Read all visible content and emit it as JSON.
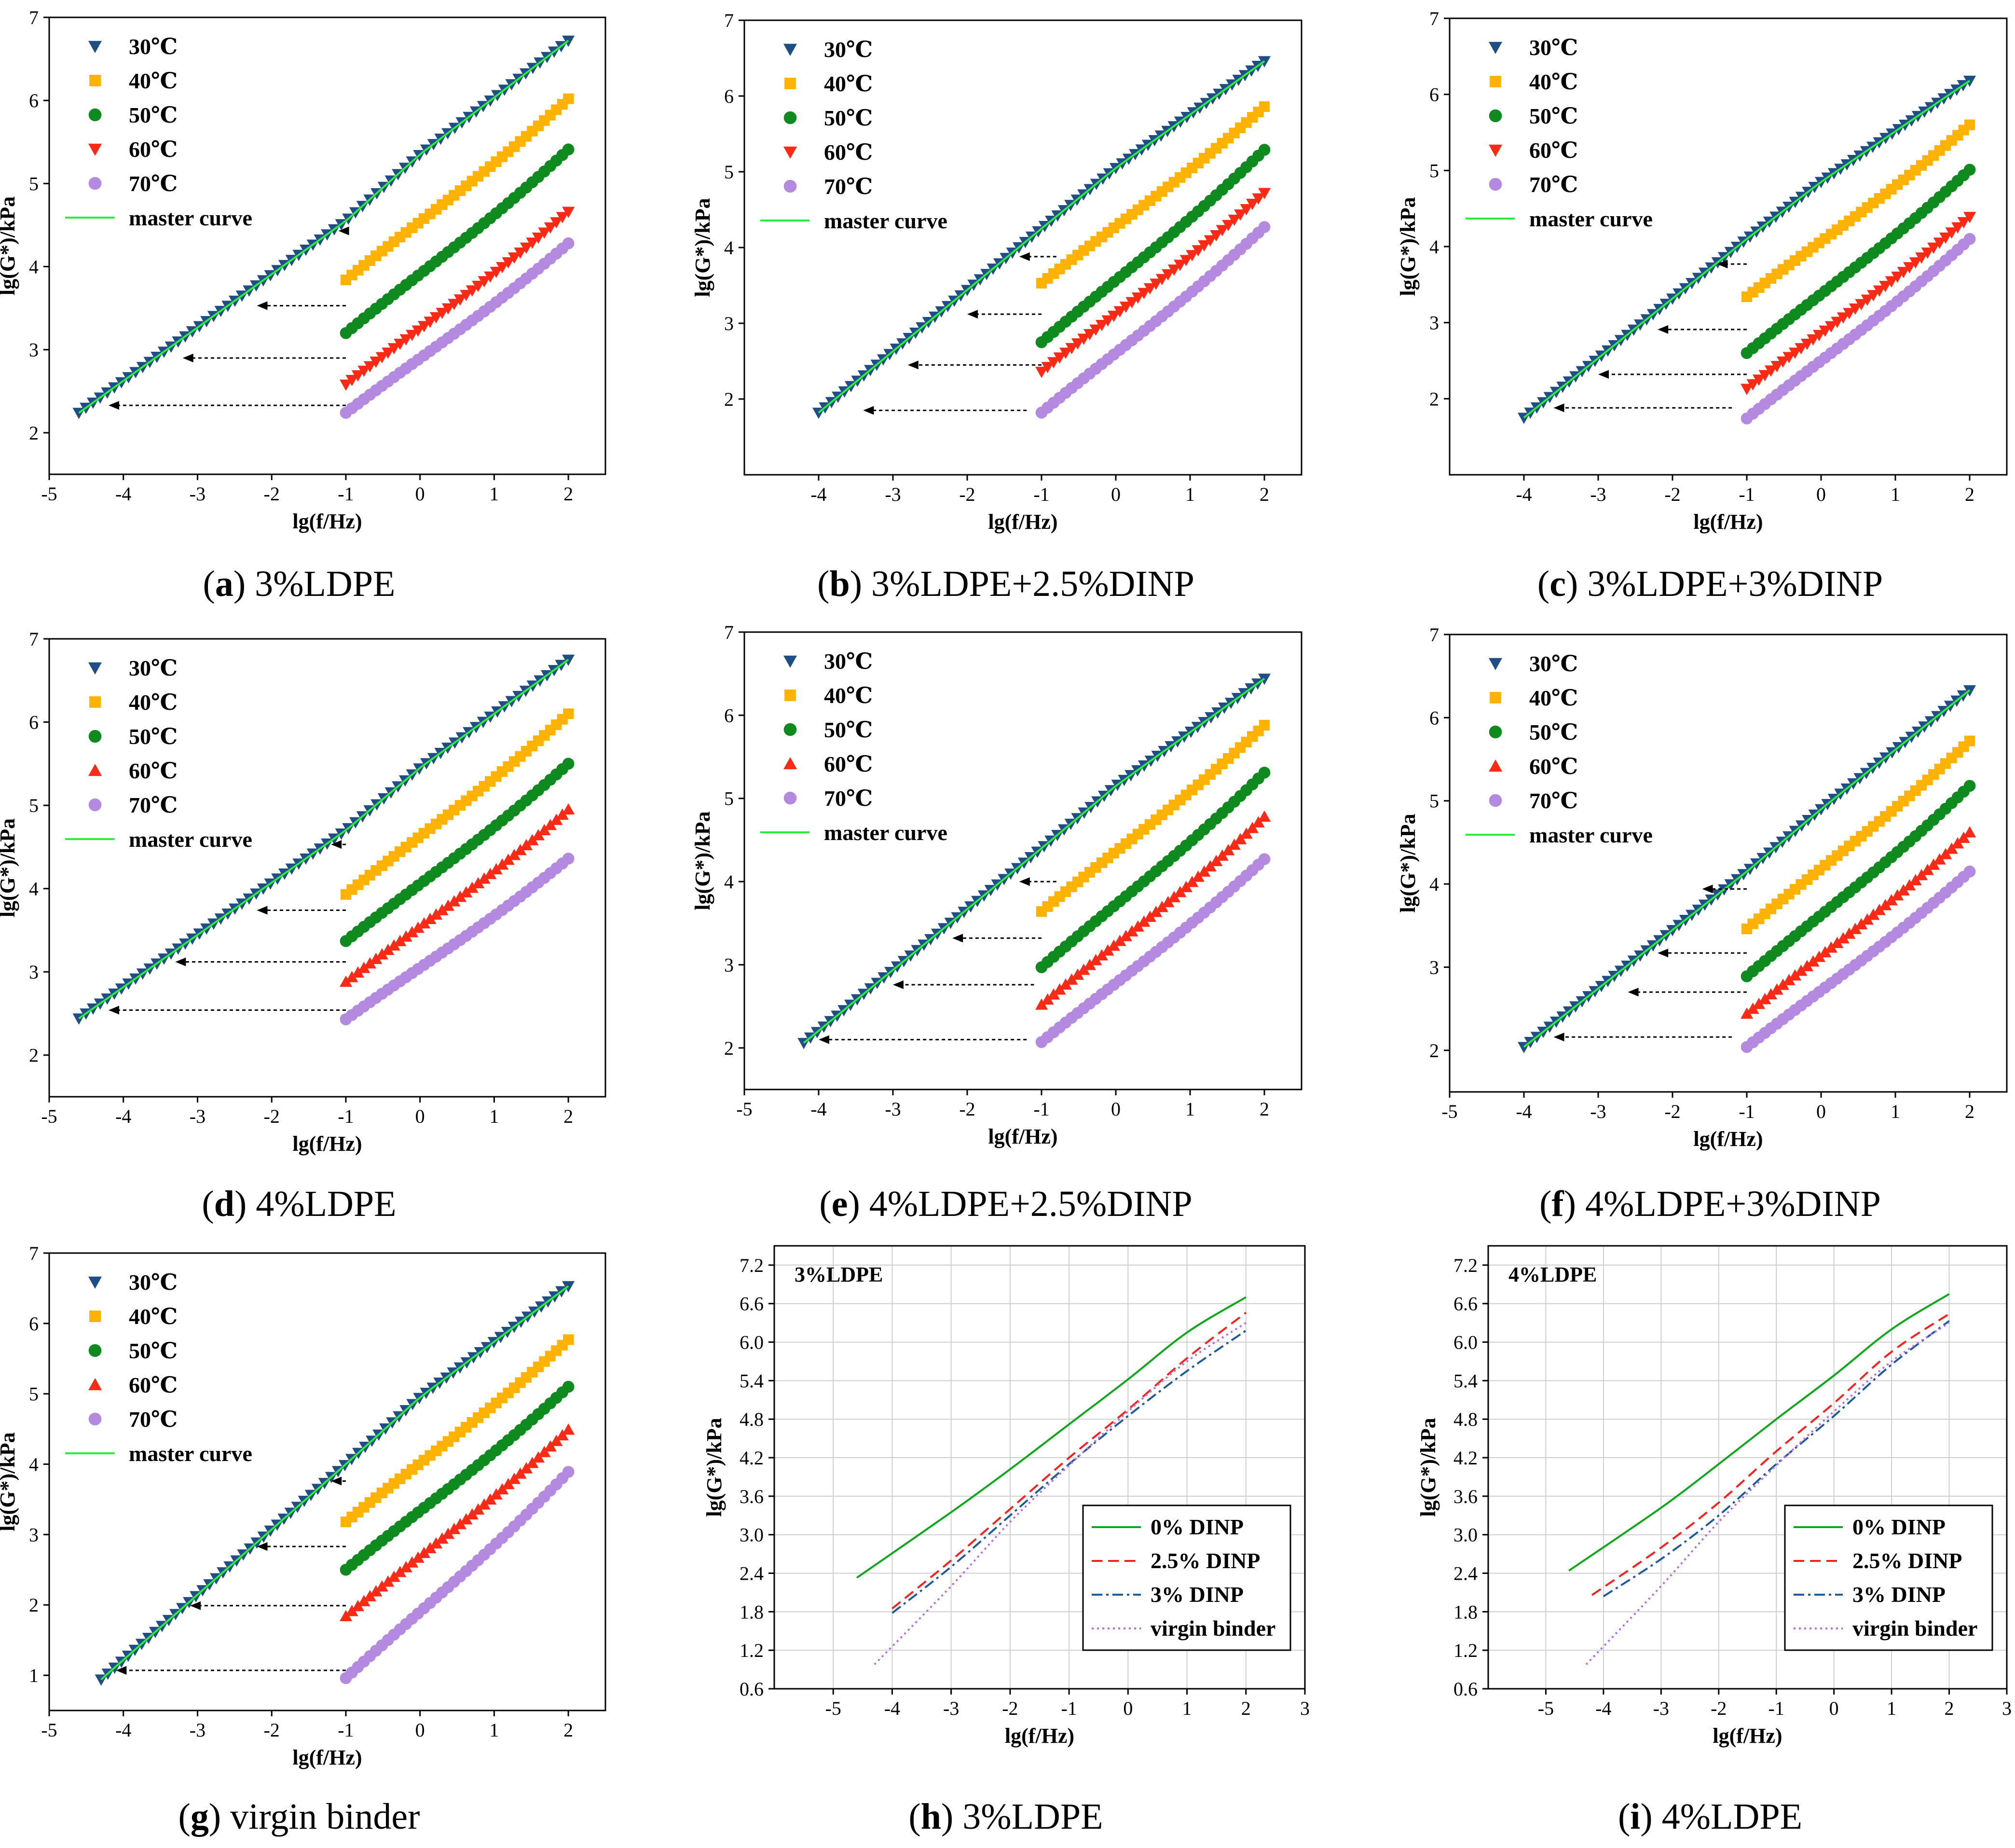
{
  "colors": {
    "t30": "#1f4e86",
    "t40": "#ffb300",
    "t50": "#0f8a1e",
    "t60": "#ff2a16",
    "t70": "#b38ae0",
    "master": "#29ee3a",
    "dinp0": "#0ca81a",
    "dinp25": "#ff1f1f",
    "dinp3": "#1f5a9a",
    "virgin": "#b070e8"
  },
  "common": {
    "xlabel": "lg(f/Hz)",
    "ylabel": "lg(G*)/kPa",
    "legend_temps": [
      "30℃",
      "40℃",
      "50℃",
      "60℃",
      "70℃"
    ],
    "legend_master": "master curve",
    "legend_dinp": [
      "0% DINP",
      "2.5% DINP",
      "3% DINP",
      "virgin binder"
    ]
  },
  "chart_data": [
    {
      "id": "a",
      "type": "scatter",
      "caption_letter": "a",
      "caption_text": "3%LDPE",
      "markers": [
        "tri-down",
        "square",
        "circle",
        "tri-down",
        "circle"
      ],
      "xlim": [
        -5,
        2.5
      ],
      "ylim": [
        1.5,
        7
      ],
      "xticks": [
        -5,
        -4,
        -3,
        -2,
        -1,
        0,
        1,
        2
      ],
      "yticks": [
        2,
        3,
        4,
        5,
        6,
        7
      ],
      "series": [
        {
          "name": "30℃",
          "y_start": 2.22,
          "y_end": 6.72
        },
        {
          "name": "40℃",
          "y_start": 3.84,
          "y_end": 6.02
        },
        {
          "name": "50℃",
          "y_start": 3.2,
          "y_end": 5.41
        },
        {
          "name": "60℃",
          "y_start": 2.58,
          "y_end": 4.66
        },
        {
          "name": "70℃",
          "y_start": 2.24,
          "y_end": 4.28
        }
      ],
      "master_curve": {
        "x": [
          -4.6,
          -1,
          0,
          2
        ],
        "y": [
          2.24,
          4.55,
          5.35,
          6.72
        ]
      },
      "shift_arrows": [
        {
          "y": 4.43,
          "x_from": -1.0,
          "x_to": -1.1
        },
        {
          "y": 3.53,
          "x_from": -1.0,
          "x_to": -2.2
        },
        {
          "y": 2.9,
          "x_from": -1.0,
          "x_to": -3.2
        },
        {
          "y": 2.33,
          "x_from": -1.0,
          "x_to": -4.2
        }
      ]
    },
    {
      "id": "b",
      "type": "scatter",
      "caption_letter": "b",
      "caption_text": "3%LDPE+2.5%DINP",
      "markers": [
        "tri-down",
        "square",
        "circle",
        "tri-down",
        "circle"
      ],
      "xlim": [
        -5,
        2.5
      ],
      "ylim": [
        1.0,
        7
      ],
      "xticks": [
        -4,
        -3,
        -2,
        -1,
        0,
        1,
        2
      ],
      "yticks": [
        2,
        3,
        4,
        5,
        6,
        7
      ],
      "series": [
        {
          "name": "30℃",
          "y_start": 1.82,
          "y_end": 6.46
        },
        {
          "name": "40℃",
          "y_start": 3.53,
          "y_end": 5.86
        },
        {
          "name": "50℃",
          "y_start": 2.75,
          "y_end": 5.29
        },
        {
          "name": "60℃",
          "y_start": 2.36,
          "y_end": 4.72
        },
        {
          "name": "70℃",
          "y_start": 1.82,
          "y_end": 4.27
        }
      ],
      "master_curve": {
        "x": [
          -4.0,
          -1,
          0,
          2
        ],
        "y": [
          1.82,
          4.25,
          5.05,
          6.46
        ]
      },
      "shift_arrows": [
        {
          "y": 3.88,
          "x_from": -0.8,
          "x_to": -1.3
        },
        {
          "y": 3.12,
          "x_from": -1.0,
          "x_to": -2.0
        },
        {
          "y": 2.45,
          "x_from": -1.0,
          "x_to": -2.8
        },
        {
          "y": 1.85,
          "x_from": -1.2,
          "x_to": -3.4
        }
      ]
    },
    {
      "id": "c",
      "type": "scatter",
      "caption_letter": "c",
      "caption_text": "3%LDPE+3%DINP",
      "markers": [
        "tri-down",
        "square",
        "circle",
        "tri-down",
        "circle"
      ],
      "xlim": [
        -5,
        2.5
      ],
      "ylim": [
        1.0,
        7
      ],
      "xticks": [
        -4,
        -3,
        -2,
        -1,
        0,
        1,
        2
      ],
      "yticks": [
        2,
        3,
        4,
        5,
        6,
        7
      ],
      "series": [
        {
          "name": "30℃",
          "y_start": 1.75,
          "y_end": 6.18
        },
        {
          "name": "40℃",
          "y_start": 3.34,
          "y_end": 5.6
        },
        {
          "name": "50℃",
          "y_start": 2.6,
          "y_end": 5.01
        },
        {
          "name": "60℃",
          "y_start": 2.13,
          "y_end": 4.39
        },
        {
          "name": "70℃",
          "y_start": 1.74,
          "y_end": 4.1
        }
      ],
      "master_curve": {
        "x": [
          -4.0,
          -1,
          0,
          2
        ],
        "y": [
          1.75,
          4.1,
          4.85,
          6.18
        ]
      },
      "shift_arrows": [
        {
          "y": 3.77,
          "x_from": -1.0,
          "x_to": -1.4
        },
        {
          "y": 2.91,
          "x_from": -1.0,
          "x_to": -2.2
        },
        {
          "y": 2.32,
          "x_from": -1.0,
          "x_to": -3.0
        },
        {
          "y": 1.88,
          "x_from": -1.2,
          "x_to": -3.6
        }
      ]
    },
    {
      "id": "d",
      "type": "scatter",
      "caption_letter": "d",
      "caption_text": "4%LDPE",
      "markers": [
        "tri-down",
        "square",
        "circle",
        "tri-up",
        "circle"
      ],
      "xlim": [
        -5,
        2.5
      ],
      "ylim": [
        1.5,
        7
      ],
      "xticks": [
        -5,
        -4,
        -3,
        -2,
        -1,
        0,
        1,
        2
      ],
      "yticks": [
        2,
        3,
        4,
        5,
        6,
        7
      ],
      "series": [
        {
          "name": "30℃",
          "y_start": 2.44,
          "y_end": 6.75
        },
        {
          "name": "40℃",
          "y_start": 3.93,
          "y_end": 6.1
        },
        {
          "name": "50℃",
          "y_start": 3.37,
          "y_end": 5.5
        },
        {
          "name": "60℃",
          "y_start": 2.88,
          "y_end": 4.95
        },
        {
          "name": "70℃",
          "y_start": 2.43,
          "y_end": 4.36
        }
      ],
      "master_curve": {
        "x": [
          -4.6,
          -1,
          0,
          2
        ],
        "y": [
          2.44,
          4.7,
          5.45,
          6.75
        ]
      },
      "shift_arrows": [
        {
          "y": 4.53,
          "x_from": -1.0,
          "x_to": -1.2
        },
        {
          "y": 3.74,
          "x_from": -1.0,
          "x_to": -2.2
        },
        {
          "y": 3.12,
          "x_from": -1.0,
          "x_to": -3.3
        },
        {
          "y": 2.54,
          "x_from": -1.0,
          "x_to": -4.2
        }
      ]
    },
    {
      "id": "e",
      "type": "scatter",
      "caption_letter": "e",
      "caption_text": "4%LDPE+2.5%DINP",
      "markers": [
        "tri-down",
        "square",
        "circle",
        "tri-up",
        "circle"
      ],
      "xlim": [
        -5,
        2.5
      ],
      "ylim": [
        1.5,
        7
      ],
      "xticks": [
        -5,
        -4,
        -3,
        -2,
        -1,
        0,
        1,
        2
      ],
      "yticks": [
        2,
        3,
        4,
        5,
        6,
        7
      ],
      "series": [
        {
          "name": "30℃",
          "y_start": 2.06,
          "y_end": 6.44
        },
        {
          "name": "40℃",
          "y_start": 3.64,
          "y_end": 5.88
        },
        {
          "name": "50℃",
          "y_start": 2.97,
          "y_end": 5.31
        },
        {
          "name": "60℃",
          "y_start": 2.52,
          "y_end": 4.78
        },
        {
          "name": "70℃",
          "y_start": 2.07,
          "y_end": 4.27
        }
      ],
      "master_curve": {
        "x": [
          -4.2,
          -1,
          0,
          2
        ],
        "y": [
          2.06,
          4.4,
          5.15,
          6.44
        ]
      },
      "shift_arrows": [
        {
          "y": 4.0,
          "x_from": -0.8,
          "x_to": -1.3
        },
        {
          "y": 3.32,
          "x_from": -1.0,
          "x_to": -2.2
        },
        {
          "y": 2.76,
          "x_from": -1.1,
          "x_to": -3.0
        },
        {
          "y": 2.1,
          "x_from": -1.2,
          "x_to": -4.0
        }
      ]
    },
    {
      "id": "f",
      "type": "scatter",
      "caption_letter": "f",
      "caption_text": "4%LDPE+3%DINP",
      "markers": [
        "tri-down",
        "square",
        "circle",
        "tri-up",
        "circle"
      ],
      "xlim": [
        -5,
        2.5
      ],
      "ylim": [
        1.5,
        7
      ],
      "xticks": [
        -5,
        -4,
        -3,
        -2,
        -1,
        0,
        1,
        2
      ],
      "yticks": [
        2,
        3,
        4,
        5,
        6,
        7
      ],
      "series": [
        {
          "name": "30℃",
          "y_start": 2.04,
          "y_end": 6.33
        },
        {
          "name": "40℃",
          "y_start": 3.46,
          "y_end": 5.72
        },
        {
          "name": "50℃",
          "y_start": 2.89,
          "y_end": 5.18
        },
        {
          "name": "60℃",
          "y_start": 2.44,
          "y_end": 4.62
        },
        {
          "name": "70℃",
          "y_start": 2.04,
          "y_end": 4.15
        }
      ],
      "master_curve": {
        "x": [
          -4.0,
          -1,
          0,
          2
        ],
        "y": [
          2.04,
          4.15,
          4.9,
          6.33
        ]
      },
      "shift_arrows": [
        {
          "y": 3.94,
          "x_from": -1.0,
          "x_to": -1.6
        },
        {
          "y": 3.17,
          "x_from": -1.0,
          "x_to": -2.2
        },
        {
          "y": 2.7,
          "x_from": -1.0,
          "x_to": -2.6
        },
        {
          "y": 2.16,
          "x_from": -1.2,
          "x_to": -3.6
        }
      ]
    },
    {
      "id": "g",
      "type": "scatter",
      "caption_letter": "g",
      "caption_text": "virgin binder",
      "markers": [
        "tri-down",
        "square",
        "circle",
        "tri-up",
        "circle"
      ],
      "xlim": [
        -5,
        2.5
      ],
      "ylim": [
        0.5,
        7
      ],
      "xticks": [
        -5,
        -4,
        -3,
        -2,
        -1,
        0,
        1,
        2
      ],
      "yticks": [
        1,
        2,
        3,
        4,
        5,
        6,
        7
      ],
      "series": [
        {
          "name": "30℃",
          "y_start": 0.94,
          "y_end": 6.53
        },
        {
          "name": "40℃",
          "y_start": 3.18,
          "y_end": 5.77
        },
        {
          "name": "50℃",
          "y_start": 2.5,
          "y_end": 5.1
        },
        {
          "name": "60℃",
          "y_start": 1.84,
          "y_end": 4.49
        },
        {
          "name": "70℃",
          "y_start": 0.96,
          "y_end": 3.89
        }
      ],
      "master_curve": {
        "x": [
          -4.3,
          -1,
          0,
          2
        ],
        "y": [
          0.94,
          4.0,
          4.95,
          6.53
        ]
      },
      "shift_arrows": [
        {
          "y": 3.76,
          "x_from": -1.0,
          "x_to": -1.2
        },
        {
          "y": 2.83,
          "x_from": -1.0,
          "x_to": -2.2
        },
        {
          "y": 1.99,
          "x_from": -1.0,
          "x_to": -3.1
        },
        {
          "y": 1.07,
          "x_from": -1.0,
          "x_to": -4.1
        }
      ]
    },
    {
      "id": "h",
      "type": "line",
      "caption_letter": "h",
      "caption_text": "3%LDPE",
      "panel_title": "3%LDPE",
      "xlim": [
        -6,
        3
      ],
      "ylim": [
        0.6,
        7.5
      ],
      "xticks": [
        -5,
        -4,
        -3,
        -2,
        -1,
        0,
        1,
        2,
        3
      ],
      "yticks": [
        0.6,
        1.2,
        1.8,
        2.4,
        3.0,
        3.6,
        4.2,
        4.8,
        5.4,
        6.0,
        6.6,
        7.2
      ],
      "series": [
        {
          "name": "0% DINP",
          "x": [
            -4.6,
            -3,
            -2,
            -1,
            0,
            1,
            2
          ],
          "y": [
            2.33,
            3.35,
            4.02,
            4.72,
            5.42,
            6.15,
            6.7
          ]
        },
        {
          "name": "2.5% DINP",
          "x": [
            -4.0,
            -3,
            -2,
            -1,
            0,
            1,
            2
          ],
          "y": [
            1.85,
            2.6,
            3.4,
            4.2,
            4.95,
            5.75,
            6.46
          ]
        },
        {
          "name": "3% DINP",
          "x": [
            -4.0,
            -3,
            -2,
            -1,
            0,
            1,
            2
          ],
          "y": [
            1.78,
            2.5,
            3.3,
            4.1,
            4.85,
            5.55,
            6.18
          ]
        },
        {
          "name": "virgin binder",
          "x": [
            -4.3,
            -3,
            -2,
            -1,
            0,
            1,
            2
          ],
          "y": [
            0.98,
            2.2,
            3.2,
            4.08,
            4.92,
            5.7,
            6.3
          ]
        }
      ]
    },
    {
      "id": "i",
      "type": "line",
      "caption_letter": "i",
      "caption_text": "4%LDPE",
      "panel_title": "4%LDPE",
      "xlim": [
        -6,
        3
      ],
      "ylim": [
        0.6,
        7.5
      ],
      "xticks": [
        -5,
        -4,
        -3,
        -2,
        -1,
        0,
        1,
        2,
        3
      ],
      "yticks": [
        0.6,
        1.2,
        1.8,
        2.4,
        3.0,
        3.6,
        4.2,
        4.8,
        5.4,
        6.0,
        6.6,
        7.2
      ],
      "series": [
        {
          "name": "0% DINP",
          "x": [
            -4.6,
            -3,
            -2,
            -1,
            0,
            1,
            2
          ],
          "y": [
            2.44,
            3.42,
            4.1,
            4.8,
            5.48,
            6.2,
            6.75
          ]
        },
        {
          "name": "2.5% DINP",
          "x": [
            -4.2,
            -3,
            -2,
            -1,
            0,
            1,
            2
          ],
          "y": [
            2.06,
            2.8,
            3.5,
            4.3,
            5.05,
            5.85,
            6.44
          ]
        },
        {
          "name": "3% DINP",
          "x": [
            -4.0,
            -3,
            -2,
            -1,
            0,
            1,
            2
          ],
          "y": [
            2.04,
            2.62,
            3.3,
            4.1,
            4.85,
            5.65,
            6.33
          ]
        },
        {
          "name": "virgin binder",
          "x": [
            -4.3,
            -3,
            -2,
            -1,
            0,
            1,
            2
          ],
          "y": [
            0.98,
            2.2,
            3.2,
            4.08,
            4.92,
            5.7,
            6.3
          ]
        }
      ]
    }
  ]
}
